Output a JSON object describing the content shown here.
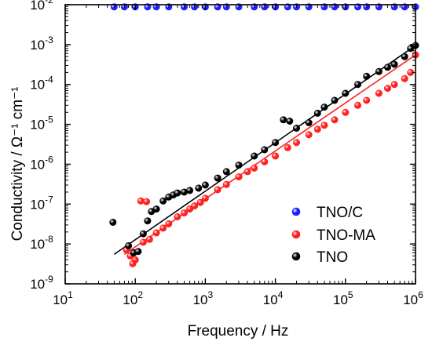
{
  "chart_data": {
    "type": "scatter",
    "title": "",
    "xlabel": "Frequency / Hz",
    "ylabel": "Conductivity / Ω⁻¹ cm⁻¹",
    "xscale": "log",
    "yscale": "log",
    "xlim": [
      10,
      1000000
    ],
    "ylim": [
      1e-09,
      0.01
    ],
    "x_ticks": [
      {
        "value": 10,
        "base": "10",
        "exp": "1"
      },
      {
        "value": 100,
        "base": "10",
        "exp": "2"
      },
      {
        "value": 1000,
        "base": "10",
        "exp": "3"
      },
      {
        "value": 10000,
        "base": "10",
        "exp": "4"
      },
      {
        "value": 100000,
        "base": "10",
        "exp": "5"
      },
      {
        "value": 1000000,
        "base": "10",
        "exp": "6"
      }
    ],
    "y_ticks": [
      {
        "value": 1e-09,
        "base": "10",
        "exp": "-9"
      },
      {
        "value": 1e-08,
        "base": "10",
        "exp": "-8"
      },
      {
        "value": 1e-07,
        "base": "10",
        "exp": "-7"
      },
      {
        "value": 1e-06,
        "base": "10",
        "exp": "-6"
      },
      {
        "value": 1e-05,
        "base": "10",
        "exp": "-5"
      },
      {
        "value": 0.0001,
        "base": "10",
        "exp": "-4"
      },
      {
        "value": 0.001,
        "base": "10",
        "exp": "-3"
      },
      {
        "value": 0.01,
        "base": "10",
        "exp": "-2"
      }
    ],
    "grid": false,
    "legend_position": "bottom-right",
    "series": [
      {
        "name": "TNO/C",
        "color": "#1f1fff",
        "points": [
          [
            50,
            0.0088
          ],
          [
            70,
            0.0088
          ],
          [
            100,
            0.0088
          ],
          [
            150,
            0.0088
          ],
          [
            200,
            0.0088
          ],
          [
            300,
            0.0088
          ],
          [
            500,
            0.0088
          ],
          [
            700,
            0.0088
          ],
          [
            1000,
            0.0088
          ],
          [
            1500,
            0.0088
          ],
          [
            2000,
            0.0088
          ],
          [
            3000,
            0.0088
          ],
          [
            5000,
            0.0088
          ],
          [
            7000,
            0.0088
          ],
          [
            10000,
            0.0088
          ],
          [
            15000,
            0.0088
          ],
          [
            20000,
            0.0088
          ],
          [
            30000,
            0.0088
          ],
          [
            50000,
            0.0088
          ],
          [
            70000,
            0.0088
          ],
          [
            100000,
            0.0088
          ],
          [
            150000,
            0.0088
          ],
          [
            200000,
            0.0088
          ],
          [
            300000,
            0.0088
          ],
          [
            500000,
            0.0088
          ],
          [
            700000,
            0.0088
          ],
          [
            1000000,
            0.0088
          ]
        ]
      },
      {
        "name": "TNO-MA",
        "color": "#ff2020",
        "points": [
          [
            75,
            7e-09
          ],
          [
            85,
            5e-09
          ],
          [
            92,
            3.2e-09
          ],
          [
            100,
            4e-09
          ],
          [
            120,
            1.2e-07
          ],
          [
            145,
            1.15e-07
          ],
          [
            130,
            1.1e-08
          ],
          [
            160,
            1.3e-08
          ],
          [
            200,
            1.9e-08
          ],
          [
            250,
            2.5e-08
          ],
          [
            300,
            3.2e-08
          ],
          [
            400,
            4.8e-08
          ],
          [
            500,
            6e-08
          ],
          [
            600,
            7.5e-08
          ],
          [
            700,
            9e-08
          ],
          [
            850,
            1.1e-07
          ],
          [
            1000,
            1.4e-07
          ],
          [
            1500,
            2.3e-07
          ],
          [
            2000,
            3.1e-07
          ],
          [
            3000,
            4.8e-07
          ],
          [
            4000,
            6.5e-07
          ],
          [
            5000,
            8e-07
          ],
          [
            7000,
            1.15e-06
          ],
          [
            10000,
            1.6e-06
          ],
          [
            15000,
            2.6e-06
          ],
          [
            20000,
            3.5e-06
          ],
          [
            30000,
            5.5e-06
          ],
          [
            40000,
            7.5e-06
          ],
          [
            50000,
            9.5e-06
          ],
          [
            70000,
            1.3e-05
          ],
          [
            100000,
            2e-05
          ],
          [
            150000,
            3e-05
          ],
          [
            200000,
            4e-05
          ],
          [
            300000,
            6e-05
          ],
          [
            400000,
            8e-05
          ],
          [
            500000,
            0.0001
          ],
          [
            700000,
            0.00014
          ],
          [
            850000,
            0.0002
          ],
          [
            1000000,
            0.00055
          ]
        ]
      },
      {
        "name": "TNO",
        "color": "#000000",
        "points": [
          [
            48,
            3.5e-08
          ],
          [
            80,
            9e-09
          ],
          [
            95,
            6e-09
          ],
          [
            110,
            6.5e-09
          ],
          [
            130,
            1.8e-08
          ],
          [
            150,
            3.8e-08
          ],
          [
            170,
            6.5e-08
          ],
          [
            200,
            7.5e-08
          ],
          [
            250,
            1.2e-07
          ],
          [
            300,
            1.5e-07
          ],
          [
            350,
            1.7e-07
          ],
          [
            400,
            1.9e-07
          ],
          [
            500,
            2e-07
          ],
          [
            600,
            2.2e-07
          ],
          [
            800,
            2.5e-07
          ],
          [
            1000,
            3e-07
          ],
          [
            1500,
            4.5e-07
          ],
          [
            2000,
            6.5e-07
          ],
          [
            3000,
            9.5e-07
          ],
          [
            5000,
            1.6e-06
          ],
          [
            7000,
            2.3e-06
          ],
          [
            10000,
            3.5e-06
          ],
          [
            13000,
            1.3e-05
          ],
          [
            16000,
            1.2e-05
          ],
          [
            20000,
            8e-06
          ],
          [
            30000,
            1.1e-05
          ],
          [
            40000,
            1.9e-05
          ],
          [
            50000,
            2.7e-05
          ],
          [
            70000,
            4e-05
          ],
          [
            100000,
            6e-05
          ],
          [
            150000,
            0.0001
          ],
          [
            200000,
            0.00016
          ],
          [
            300000,
            0.00021
          ],
          [
            400000,
            0.00027
          ],
          [
            500000,
            0.00032
          ],
          [
            700000,
            0.0005
          ],
          [
            850000,
            0.0008
          ],
          [
            1000000,
            0.00095
          ]
        ]
      }
    ],
    "fit_lines": [
      {
        "color": "#000000",
        "x": [
          50,
          1000000
        ],
        "y": [
          5.5e-09,
          0.00095
        ]
      },
      {
        "color": "#ff2020",
        "x": [
          70,
          1000000
        ],
        "y": [
          5.5e-09,
          0.00055
        ]
      }
    ]
  }
}
